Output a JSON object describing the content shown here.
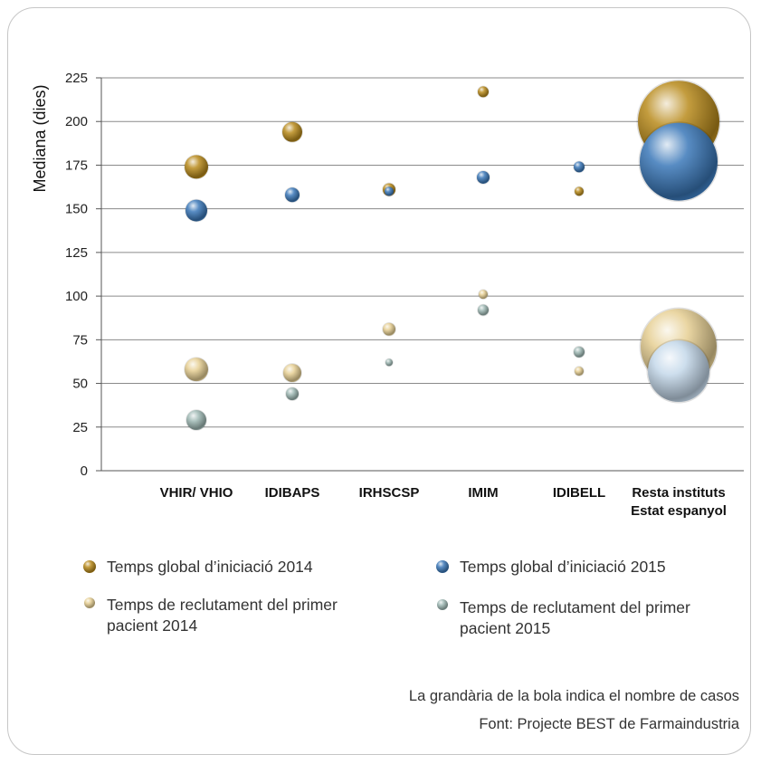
{
  "colors": {
    "global_2014": "#b88a1c",
    "global_2015": "#3b78b8",
    "recruit_2014": "#e6cf93",
    "recruit_2015": "#9fb8b4",
    "big_recruit_2015": "#c4d8ea"
  },
  "legend": [
    {
      "key": "global_2014",
      "label": "Temps global d’iniciació 2014"
    },
    {
      "key": "global_2015",
      "label": "Temps global d’iniciació 2015"
    },
    {
      "key": "recruit_2014",
      "label_lines": [
        "Temps de reclutament del primer",
        "pacient 2014"
      ]
    },
    {
      "key": "recruit_2015",
      "label_lines": [
        "Temps de reclutament del primer",
        "pacient 2015"
      ]
    }
  ],
  "notes": {
    "size_note": "La grandària de la bola indica el nombre de casos",
    "source": "Font: Projecte BEST de Farmaindustria"
  },
  "chart_data": {
    "type": "scatter",
    "subtype": "bubble",
    "ylabel": "Mediana (dies)",
    "xlabel": "",
    "ylim": [
      0,
      225
    ],
    "yticks": [
      0,
      25,
      50,
      75,
      100,
      125,
      150,
      175,
      200,
      225
    ],
    "grid": true,
    "legend_position": "bottom",
    "categories": [
      [
        "VHIR/ VHIO"
      ],
      [
        "IDIBAPS"
      ],
      [
        "IRHSCSP"
      ],
      [
        "IMIM"
      ],
      [
        "IDIBELL"
      ],
      [
        "Resta instituts",
        "Estat espanyol"
      ]
    ],
    "series": [
      {
        "key": "global_2014",
        "name": "Temps global d’iniciació 2014",
        "values": [
          174,
          194,
          161,
          217,
          160,
          200
        ],
        "relative_size": [
          13,
          11,
          7,
          6,
          5,
          45
        ]
      },
      {
        "key": "global_2015",
        "name": "Temps global d’iniciació 2015",
        "values": [
          149,
          158,
          160,
          168,
          174,
          177
        ],
        "relative_size": [
          12,
          8,
          5,
          7,
          6,
          43
        ]
      },
      {
        "key": "recruit_2014",
        "name": "Temps de reclutament del primer pacient 2014",
        "values": [
          58,
          56,
          81,
          101,
          57,
          71
        ],
        "relative_size": [
          13,
          10,
          7,
          5,
          5,
          42
        ]
      },
      {
        "key": "recruit_2015",
        "name": "Temps de reclutament del primer pacient 2015",
        "values": [
          29,
          44,
          62,
          92,
          68,
          57
        ],
        "relative_size": [
          11,
          7,
          4,
          6,
          6,
          34
        ]
      }
    ]
  }
}
